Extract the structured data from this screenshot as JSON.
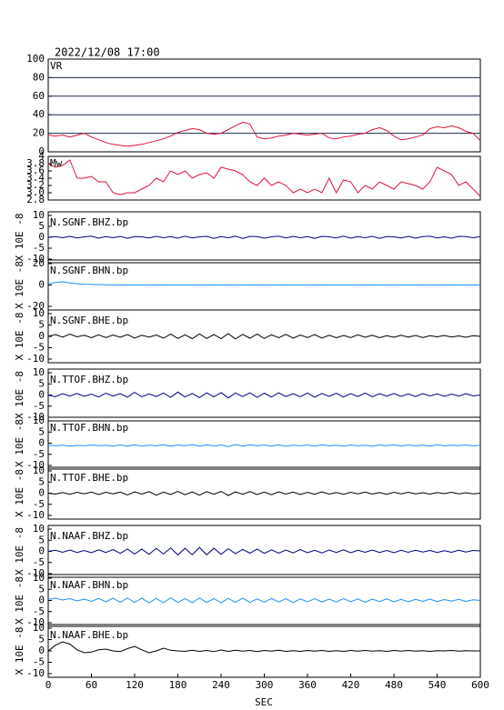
{
  "chart_data": {
    "type": "line",
    "title": "2022/12/08 17:00",
    "xlabel": "SEC",
    "xlim": [
      0,
      600
    ],
    "xticks": [
      0,
      60,
      120,
      180,
      240,
      300,
      360,
      420,
      480,
      540,
      600
    ],
    "x": [
      0,
      10,
      20,
      30,
      40,
      50,
      60,
      70,
      80,
      90,
      100,
      110,
      120,
      130,
      140,
      150,
      160,
      170,
      180,
      190,
      200,
      210,
      220,
      230,
      240,
      250,
      260,
      270,
      280,
      290,
      300,
      310,
      320,
      330,
      340,
      350,
      360,
      370,
      380,
      390,
      400,
      410,
      420,
      430,
      440,
      450,
      460,
      470,
      480,
      490,
      500,
      510,
      520,
      530,
      540,
      550,
      560,
      570,
      580,
      590,
      600
    ],
    "panels": [
      {
        "ylim": [
          0,
          100
        ],
        "yticks": [
          0,
          20,
          40,
          60,
          80,
          100
        ],
        "grid": true,
        "series": [
          {
            "name": "VR",
            "color": "#dc143c",
            "values": [
              18,
              17,
              18,
              16,
              18,
              20,
              16,
              13,
              10,
              8,
              7,
              6,
              7,
              8,
              10,
              12,
              14,
              17,
              21,
              23,
              25,
              24,
              20,
              19,
              20,
              24,
              28,
              32,
              30,
              16,
              14,
              15,
              17,
              18,
              20,
              19,
              18,
              19,
              20,
              15,
              14,
              16,
              17,
              19,
              20,
              24,
              26,
              23,
              17,
              13,
              14,
              16,
              18,
              25,
              27,
              26,
              28,
              26,
              22,
              20,
              12
            ]
          }
        ]
      },
      {
        "ylim": [
          2.8,
          4
        ],
        "yticks": [
          2.8,
          {
            "value": 3,
            "label": "3.0"
          },
          3.2,
          3.4,
          3.6,
          3.8,
          4
        ],
        "grid": false,
        "series": [
          {
            "name": "Mw",
            "color": "#dc143c",
            "values": [
              3.8,
              3.7,
              3.75,
              3.9,
              3.4,
              3.4,
              3.45,
              3.3,
              3.3,
              3.0,
              2.95,
              3.0,
              3.0,
              3.1,
              3.2,
              3.4,
              3.3,
              3.6,
              3.5,
              3.6,
              3.4,
              3.5,
              3.55,
              3.4,
              3.7,
              3.65,
              3.6,
              3.5,
              3.3,
              3.2,
              3.4,
              3.2,
              3.3,
              3.2,
              3.0,
              3.1,
              3.0,
              3.1,
              3.0,
              3.4,
              3.0,
              3.35,
              3.3,
              3.0,
              3.2,
              3.1,
              3.3,
              3.2,
              3.1,
              3.3,
              3.25,
              3.2,
              3.1,
              3.3,
              3.7,
              3.6,
              3.5,
              3.2,
              3.3,
              3.1,
              2.9
            ]
          }
        ]
      },
      {
        "ylim": [
          -10,
          10
        ],
        "yticks": [
          -10,
          -5,
          0,
          5,
          10
        ],
        "ylabel": "X 10E -8",
        "series": [
          {
            "name": "N.SGNF.BHZ.bp",
            "color": "#00008b",
            "values": [
              0,
              0.3,
              -0.2,
              0.4,
              -0.3,
              0.2,
              0.5,
              -0.4,
              0.3,
              -0.2,
              0.4,
              -0.5,
              0.3,
              0.2,
              -0.3,
              0.4,
              -0.2,
              0.3,
              -0.4,
              0.5,
              -0.3,
              0.2,
              0.4,
              -0.5,
              0.3,
              -0.2,
              0.5,
              -0.6,
              0.4,
              0.3,
              -0.4,
              0.2,
              0.5,
              -0.3,
              0.4,
              -0.2,
              0.3,
              -0.5,
              0.4,
              0.2,
              -0.3,
              0.5,
              -0.4,
              0.3,
              -0.2,
              0.4,
              -0.5,
              0.3,
              0.2,
              -0.3,
              0.4,
              -0.4,
              0.3,
              0.5,
              -0.3,
              0.2,
              -0.4,
              0.4,
              0.3,
              -0.2,
              0.3
            ]
          }
        ]
      },
      {
        "ylim": [
          -20,
          20
        ],
        "yticks": [
          -20,
          0,
          20
        ],
        "ylabel": "X 10E -8",
        "series": [
          {
            "name": "N.SGNF.BHN.bp",
            "color": "#1e90ff",
            "values": [
              1,
              2.5,
              3,
              2,
              1.2,
              0.8,
              0.5,
              0.3,
              0.2,
              0.1,
              0.2,
              0,
              0.1,
              0,
              -0.1,
              0,
              0.1,
              0,
              0,
              0.1,
              0,
              -0.1,
              0,
              0.1,
              0,
              0,
              -0.1,
              0,
              0.1,
              0,
              0,
              -0.1,
              0,
              0.1,
              0,
              0,
              -0.1,
              0,
              0.1,
              0,
              0.1,
              0,
              0,
              -0.1,
              0,
              0.1,
              0,
              0,
              -0.1,
              0,
              0,
              0.1,
              0,
              -0.1,
              0,
              0,
              0.1,
              0,
              0,
              -0.1,
              0
            ]
          }
        ]
      },
      {
        "ylim": [
          -10,
          10
        ],
        "yticks": [
          -10,
          -5,
          0,
          5,
          10
        ],
        "ylabel": "X 10E -8",
        "series": [
          {
            "name": "N.SGNF.BHE.bp",
            "color": "#000000",
            "values": [
              0,
              0.8,
              -0.3,
              1,
              -0.2,
              0.5,
              -0.6,
              0.7,
              -0.5,
              0.6,
              -0.4,
              0.8,
              -0.7,
              0.5,
              -0.3,
              0.6,
              -0.8,
              1,
              -0.9,
              0.7,
              -1,
              1.1,
              -0.9,
              0.8,
              -1,
              1.2,
              -1.1,
              0.9,
              -0.8,
              1,
              -0.9,
              0.7,
              -0.6,
              0.9,
              -0.8,
              0.6,
              -0.5,
              0.8,
              -0.7,
              0.5,
              -0.6,
              0.4,
              -0.5,
              0.7,
              -0.4,
              0.5,
              -0.6,
              0.3,
              -0.4,
              0.5,
              -0.3,
              0.4,
              -0.5,
              0.3,
              -0.2,
              0.4,
              -0.3,
              0.2,
              -0.4,
              0.3,
              0
            ]
          }
        ]
      },
      {
        "ylim": [
          -10,
          10
        ],
        "yticks": [
          -10,
          -5,
          0,
          5,
          10
        ],
        "ylabel": "X 10E -8",
        "series": [
          {
            "name": "N.TTOF.BHZ.bp",
            "color": "#00008b",
            "values": [
              0,
              -0.8,
              0.6,
              -0.5,
              0.7,
              -0.6,
              0.4,
              -0.9,
              0.8,
              -0.5,
              0.6,
              -1,
              1.2,
              -0.8,
              0.5,
              -0.7,
              0.9,
              -1.1,
              1.3,
              -0.9,
              0.7,
              -1.2,
              1,
              -0.8,
              1.1,
              -1.3,
              0.9,
              -0.7,
              1,
              -1.1,
              0.8,
              -0.9,
              1,
              -0.7,
              0.6,
              -0.8,
              0.9,
              -1,
              0.7,
              -0.6,
              0.8,
              -0.9,
              0.6,
              -0.7,
              0.9,
              -0.8,
              0.6,
              -0.5,
              0.7,
              -0.6,
              0.5,
              -0.7,
              0.6,
              -0.4,
              0.5,
              -0.6,
              0.4,
              -0.5,
              0.6,
              -0.4,
              0
            ]
          }
        ]
      },
      {
        "ylim": [
          -10,
          10
        ],
        "yticks": [
          -10,
          -5,
          0,
          5,
          10
        ],
        "ylabel": "X 10E -8",
        "series": [
          {
            "name": "N.TTOF.BHN.bp",
            "color": "#1e90ff",
            "values": [
              -0.8,
              -1.2,
              -0.9,
              -1.3,
              -1,
              -1.2,
              -0.8,
              -1.1,
              -0.9,
              -1.3,
              -0.8,
              -1.4,
              -0.7,
              -1.3,
              -0.9,
              -1.2,
              -0.7,
              -1.4,
              -0.8,
              -1.2,
              -0.6,
              -1.4,
              -0.7,
              -1.3,
              -0.8,
              -1.5,
              -0.6,
              -1.3,
              -0.7,
              -1.2,
              -0.8,
              -1.3,
              -0.7,
              -1.4,
              -0.9,
              -1.2,
              -0.8,
              -1.3,
              -0.7,
              -1.2,
              -0.9,
              -1.3,
              -0.8,
              -1.2,
              -0.9,
              -1.4,
              -0.8,
              -1.2,
              -0.7,
              -1.3,
              -0.8,
              -1.2,
              -0.9,
              -1.3,
              -0.7,
              -1.2,
              -0.9,
              -1.1,
              -0.8,
              -1.2,
              -1
            ]
          }
        ]
      },
      {
        "ylim": [
          -10,
          10
        ],
        "yticks": [
          -10,
          -5,
          0,
          5,
          10
        ],
        "ylabel": "X 10E -8",
        "series": [
          {
            "name": "N.TTOF.BHE.bp",
            "color": "#000000",
            "values": [
              0,
              -0.4,
              0.3,
              -0.5,
              0.4,
              -0.3,
              0.5,
              -0.6,
              0.4,
              -0.3,
              0.5,
              -0.8,
              0.6,
              -0.4,
              0.7,
              -0.9,
              0.5,
              -0.6,
              0.8,
              -0.7,
              0.6,
              -0.9,
              0.7,
              -0.5,
              0.8,
              -1,
              0.6,
              -0.5,
              0.7,
              -0.6,
              0.5,
              -0.7,
              0.6,
              -0.4,
              0.5,
              -0.6,
              0.4,
              -0.5,
              0.6,
              -0.4,
              0.3,
              -0.5,
              0.4,
              -0.3,
              0.5,
              -0.4,
              0.3,
              -0.5,
              0.4,
              -0.3,
              0.4,
              -0.3,
              0.2,
              -0.4,
              0.3,
              -0.2,
              0.4,
              -0.3,
              0.2,
              -0.3,
              0
            ]
          }
        ]
      },
      {
        "ylim": [
          -10,
          10
        ],
        "yticks": [
          -10,
          -5,
          0,
          5,
          10
        ],
        "ylabel": "X 10E -8",
        "series": [
          {
            "name": "N.NAAF.BHZ.bp",
            "color": "#00008b",
            "values": [
              0,
              0.5,
              -0.4,
              0.6,
              -0.5,
              0.4,
              -0.6,
              0.7,
              -0.5,
              0.8,
              -0.9,
              1.1,
              -1.2,
              1,
              -1.3,
              1.4,
              -1.2,
              1.5,
              -1.6,
              1.4,
              -1.5,
              1.8,
              -1.6,
              1.4,
              -1.3,
              1.2,
              -1,
              0.9,
              -0.8,
              1,
              -0.9,
              0.7,
              -0.8,
              0.6,
              -0.7,
              0.8,
              -0.6,
              0.5,
              -0.7,
              0.6,
              -0.5,
              0.7,
              -0.6,
              0.5,
              -0.4,
              0.6,
              -0.5,
              0.4,
              -0.6,
              0.5,
              -0.4,
              0.5,
              -0.3,
              0.4,
              -0.5,
              0.3,
              -0.4,
              0.5,
              -0.3,
              0.4,
              0.2
            ]
          }
        ]
      },
      {
        "ylim": [
          -10,
          10
        ],
        "yticks": [
          -10,
          -5,
          0,
          5,
          10
        ],
        "ylabel": "X 10E -8",
        "series": [
          {
            "name": "N.NAAF.BHN.bp",
            "color": "#1e90ff",
            "values": [
              0.5,
              1,
              0.2,
              0.8,
              -0.2,
              0.6,
              -0.4,
              0.9,
              -0.6,
              1,
              -0.8,
              1.1,
              -0.9,
              1,
              -1.1,
              0.9,
              -1,
              1.2,
              -0.9,
              0.8,
              -1,
              1.1,
              -0.9,
              0.8,
              -1,
              0.9,
              -0.8,
              1,
              -0.9,
              0.7,
              -0.8,
              0.9,
              -0.7,
              0.8,
              -0.9,
              0.7,
              -0.6,
              0.8,
              -0.7,
              0.6,
              -0.7,
              0.8,
              -0.6,
              0.7,
              -0.8,
              0.6,
              -0.5,
              0.7,
              -0.6,
              0.5,
              -0.6,
              0.5,
              -0.4,
              0.6,
              -0.5,
              0.4,
              -0.3,
              0.5,
              -0.4,
              0.3,
              0
            ]
          }
        ]
      },
      {
        "ylim": [
          -10,
          10
        ],
        "yticks": [
          -10,
          -5,
          0,
          5,
          10
        ],
        "ylabel": "X 10E -8",
        "series": [
          {
            "name": "N.NAAF.BHE.bp",
            "color": "#000000",
            "values": [
              0,
              2.5,
              4,
              3,
              0.5,
              -0.8,
              -0.5,
              0.5,
              0.8,
              0,
              -0.3,
              1,
              2,
              0.5,
              -0.8,
              0,
              1.2,
              0.3,
              0,
              -0.2,
              0.3,
              -0.2,
              0.2,
              -0.3,
              0.4,
              -0.2,
              0.3,
              -0.1,
              0.2,
              -0.3,
              0.2,
              -0.1,
              0.3,
              -0.2,
              0.1,
              -0.2,
              0.2,
              -0.1,
              0.2,
              -0.2,
              0.1,
              -0.2,
              0.2,
              -0.1,
              0.2,
              -0.1,
              0.1,
              -0.2,
              0.2,
              -0.1,
              0.2,
              -0.1,
              0.1,
              -0.2,
              0.1,
              0,
              0.2,
              -0.1,
              0.1,
              0,
              0
            ]
          }
        ]
      }
    ]
  }
}
